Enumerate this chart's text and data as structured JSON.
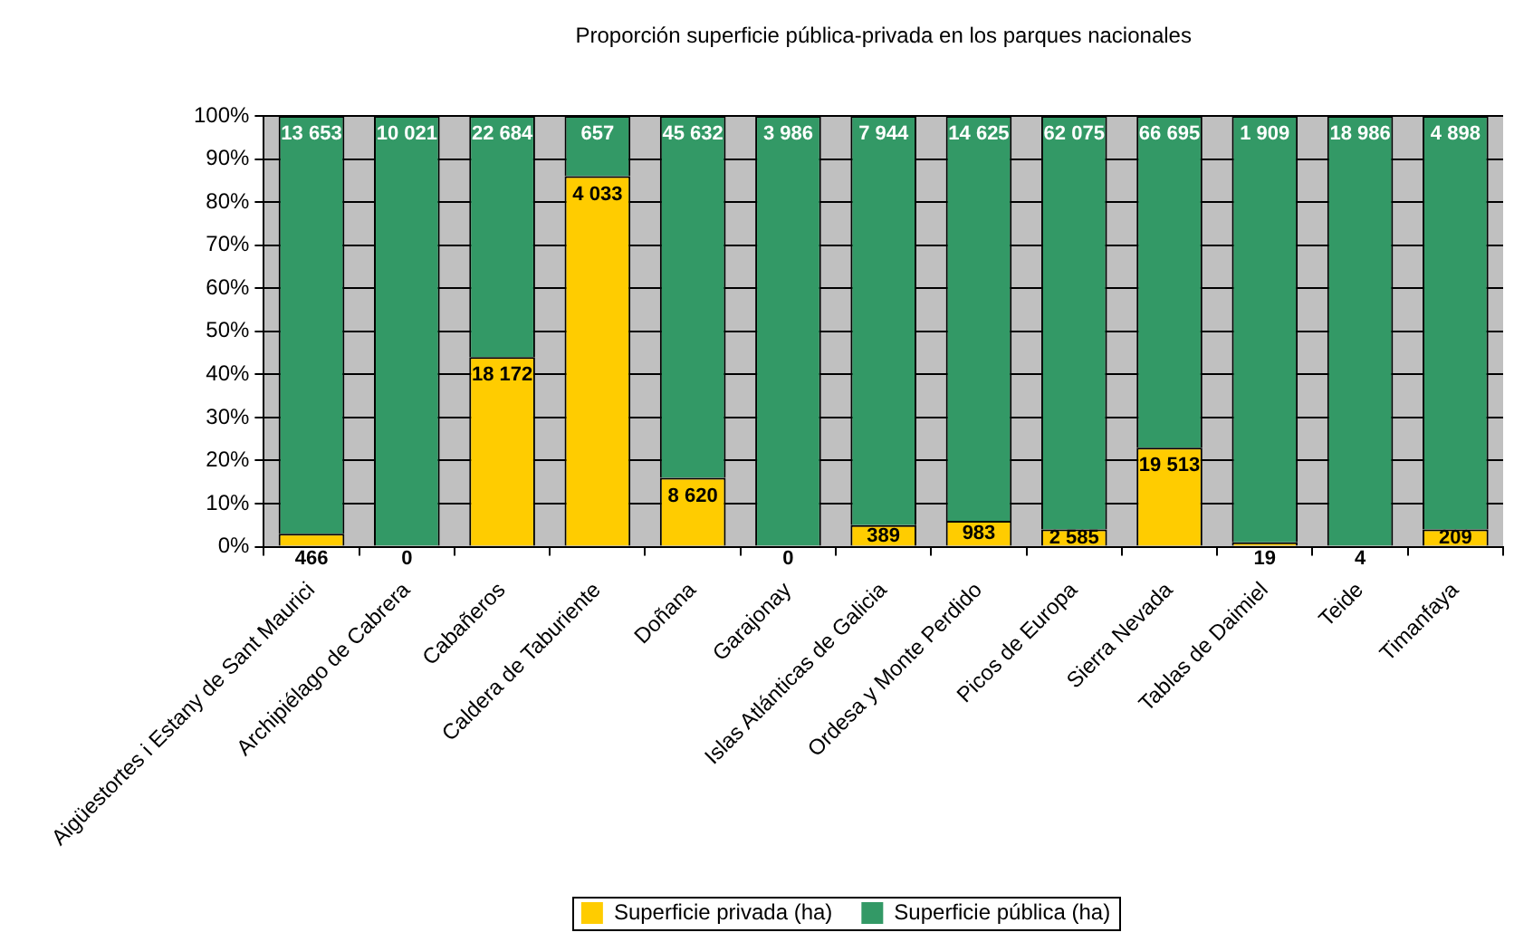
{
  "chart_data": {
    "type": "bar",
    "title": "Proporción superficie pública-privada en los parques nacionales",
    "categories": [
      "Aigüestortes i Estany de Sant Maurici",
      "Archipiélago de Cabrera",
      "Cabañeros",
      "Caldera de Taburiente",
      "Doñana",
      "Garajonay",
      "Islas Atlánticas de Galicia",
      "Ordesa y Monte Perdido",
      "Picos de Europa",
      "Sierra Nevada",
      "Tablas de Daimiel",
      "Teide",
      "Timanfaya"
    ],
    "series": [
      {
        "name": "Superficie privada (ha)",
        "color": "#ffcc00",
        "values": [
          3,
          0,
          44,
          86,
          16,
          0,
          5,
          6,
          4,
          23,
          1,
          0,
          4
        ]
      },
      {
        "name": "Superficie pública (ha)",
        "color": "#339966",
        "values": [
          97,
          100,
          56,
          14,
          84,
          100,
          95,
          94,
          96,
          77,
          99,
          100,
          96
        ]
      }
    ],
    "stacked": true,
    "ylim": [
      0,
      100
    ],
    "yticks": [
      {
        "value": 0,
        "label": "0%"
      },
      {
        "value": 10,
        "label": "10%"
      },
      {
        "value": 20,
        "label": "20%"
      },
      {
        "value": 30,
        "label": "30%"
      },
      {
        "value": 40,
        "label": "40%"
      },
      {
        "value": 50,
        "label": "50%"
      },
      {
        "value": 60,
        "label": "60%"
      },
      {
        "value": 70,
        "label": "70%"
      },
      {
        "value": 80,
        "label": "80%"
      },
      {
        "value": 90,
        "label": "90%"
      },
      {
        "value": 100,
        "label": "100%"
      }
    ],
    "annotations": [
      {
        "text": "466",
        "x": "Aigüestortes i Estany de Sant Maurici",
        "y": 3
      },
      {
        "text": "13 653",
        "x": "Aigüestortes i Estany de Sant Maurici",
        "y": 100
      },
      {
        "text": "0",
        "x": "Archipiélago de Cabrera",
        "y": 0
      },
      {
        "text": "10 021",
        "x": "Archipiélago de Cabrera",
        "y": 100
      },
      {
        "text": "18 172",
        "x": "Cabañeros",
        "y": 44
      },
      {
        "text": "22 684",
        "x": "Cabañeros",
        "y": 100
      },
      {
        "text": "4 033",
        "x": "Caldera de Taburiente",
        "y": 86
      },
      {
        "text": "657",
        "x": "Caldera de Taburiente",
        "y": 100
      },
      {
        "text": "8 620",
        "x": "Doñana",
        "y": 16
      },
      {
        "text": "45 632",
        "x": "Doñana",
        "y": 100
      },
      {
        "text": "0",
        "x": "Garajonay",
        "y": 0
      },
      {
        "text": "3 986",
        "x": "Garajonay",
        "y": 100
      },
      {
        "text": "389",
        "x": "Islas Atlánticas de Galicia",
        "y": 5
      },
      {
        "text": "7 944",
        "x": "Islas Atlánticas de Galicia",
        "y": 100
      },
      {
        "text": "983",
        "x": "Ordesa y Monte Perdido",
        "y": 6
      },
      {
        "text": "14 625",
        "x": "Ordesa y Monte Perdido",
        "y": 100
      },
      {
        "text": "2 585",
        "x": "Picos de Europa",
        "y": 4
      },
      {
        "text": "62 075",
        "x": "Picos de Europa",
        "y": 100
      },
      {
        "text": "19 513",
        "x": "Sierra Nevada",
        "y": 23
      },
      {
        "text": "66 695",
        "x": "Sierra Nevada",
        "y": 100
      },
      {
        "text": "19",
        "x": "Tablas de Daimiel",
        "y": 1
      },
      {
        "text": "1 909",
        "x": "Tablas de Daimiel",
        "y": 100
      },
      {
        "text": "4",
        "x": "Teide",
        "y": 0
      },
      {
        "text": "18 986",
        "x": "Teide",
        "y": 100
      },
      {
        "text": "209",
        "x": "Timanfaya",
        "y": 4
      },
      {
        "text": "4 898",
        "x": "Timanfaya",
        "y": 100
      }
    ],
    "grid": "y",
    "legend": "bottom"
  }
}
